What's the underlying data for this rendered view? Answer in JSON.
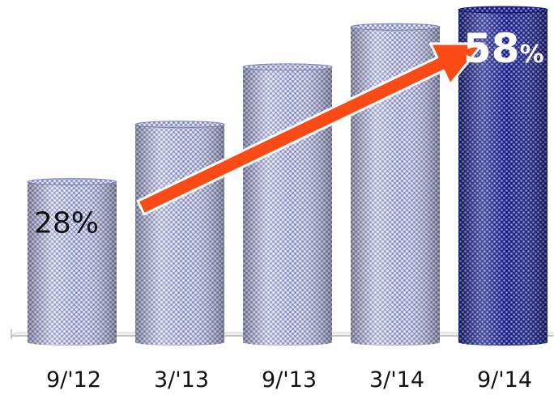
{
  "chart_data": {
    "type": "bar",
    "style": "3d-cylinder",
    "categories": [
      "9/'12",
      "3/'13",
      "9/'13",
      "3/'14",
      "9/'14"
    ],
    "values": [
      28,
      38,
      48,
      55,
      58
    ],
    "annotations": {
      "start_label": "28%",
      "end_value": "58",
      "end_unit": "%",
      "trend_arrow": "up"
    },
    "ylim": [
      0,
      60
    ],
    "grid": false,
    "legend": "none",
    "colors": {
      "bar": "#9ea2cf",
      "bar_highlight": "#1f2590",
      "arrow": "#fa4a16"
    }
  }
}
